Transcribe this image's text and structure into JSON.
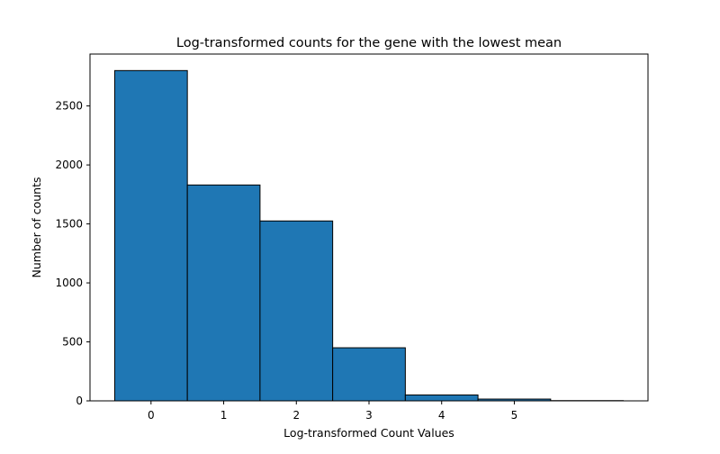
{
  "chart_data": {
    "type": "bar",
    "title": "Log-transformed counts for the gene with the lowest mean",
    "xlabel": "Log-transformed Count Values",
    "ylabel": "Number of counts",
    "bins": [
      {
        "start": -0.5,
        "end": 0.5,
        "count": 2800
      },
      {
        "start": 0.5,
        "end": 1.5,
        "count": 1830
      },
      {
        "start": 1.5,
        "end": 2.5,
        "count": 1525
      },
      {
        "start": 2.5,
        "end": 3.5,
        "count": 450
      },
      {
        "start": 3.5,
        "end": 4.5,
        "count": 50
      },
      {
        "start": 4.5,
        "end": 5.5,
        "count": 15
      },
      {
        "start": 5.5,
        "end": 6.5,
        "count": 2
      }
    ],
    "xticks": [
      0,
      1,
      2,
      3,
      4,
      5
    ],
    "yticks": [
      0,
      500,
      1000,
      1500,
      2000,
      2500
    ],
    "xlim": [
      -0.84,
      6.84
    ],
    "ylim": [
      0,
      2940
    ],
    "bar_color": "#1f77b4",
    "edge_color": "#000000",
    "grid": false
  }
}
